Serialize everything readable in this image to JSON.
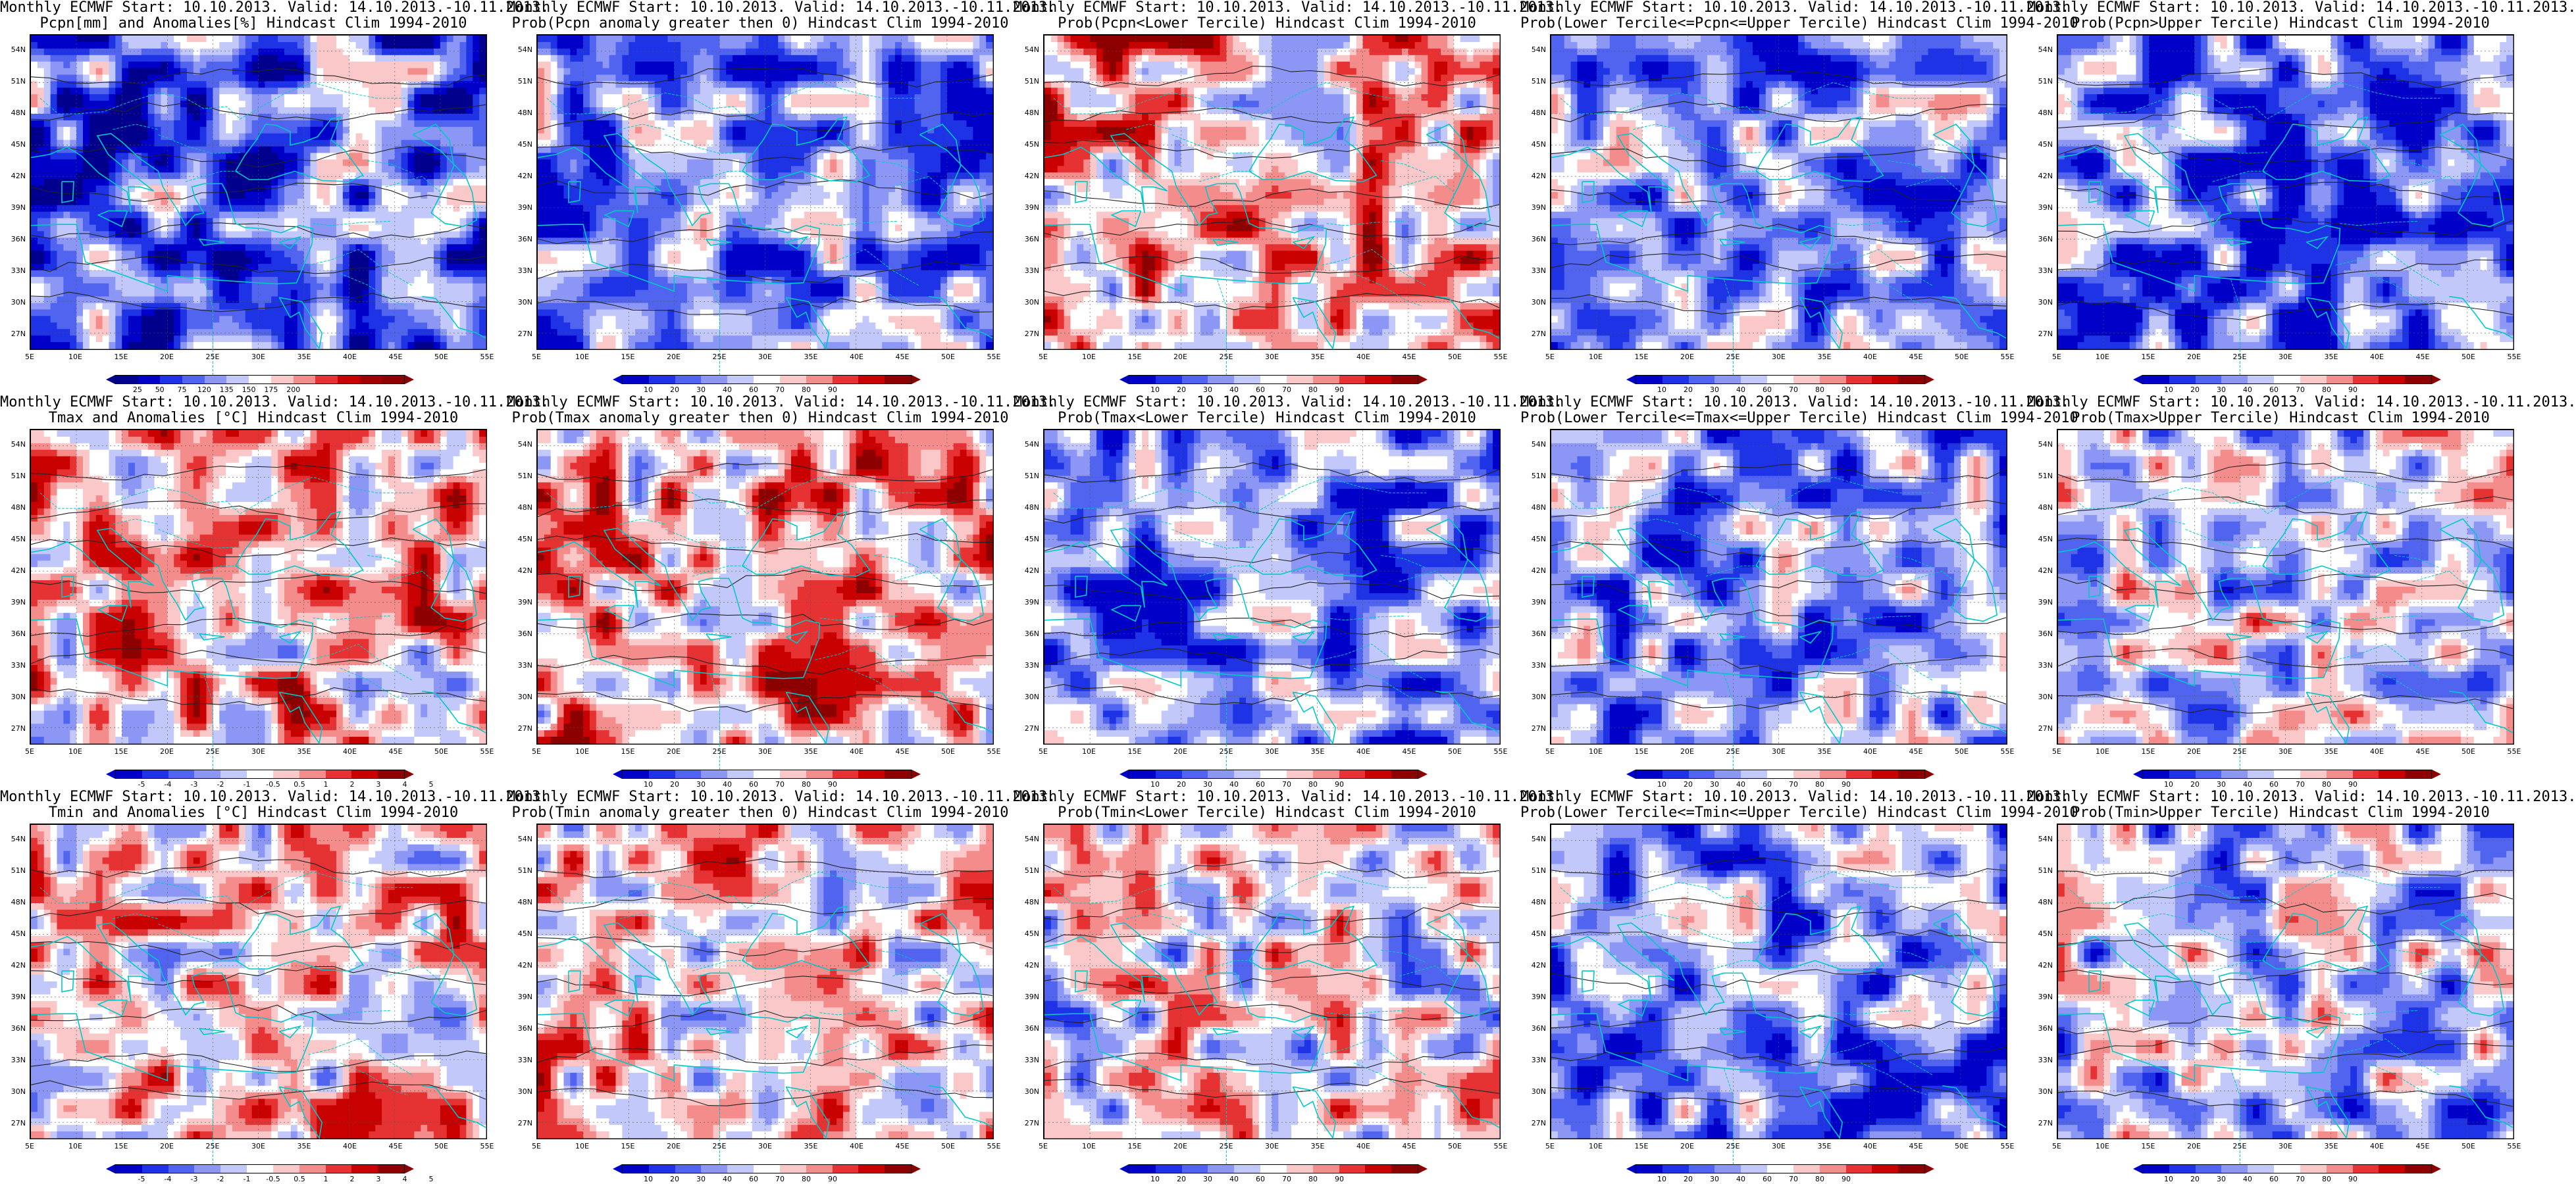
{
  "map_extent": {
    "lon_min": 5,
    "lon_max": 55,
    "lat_min": 25,
    "lat_max": 55,
    "lon_ticks": [
      "5E",
      "10E",
      "15E",
      "20E",
      "25E",
      "30E",
      "35E",
      "40E",
      "45E",
      "50E",
      "55E"
    ],
    "lat_ticks": [
      "54N",
      "51N",
      "48N",
      "45N",
      "42N",
      "39N",
      "36N",
      "33N",
      "30N",
      "27N"
    ]
  },
  "colors": {
    "coast": "#00c8c8",
    "contour": "#222222",
    "prob_ramp": [
      "#0000c8",
      "#1e32e6",
      "#5064f0",
      "#8c96f5",
      "#c3c8fa",
      "#ffffff",
      "#fac8c8",
      "#f58c8c",
      "#e63232",
      "#c80000",
      "#8c0000"
    ],
    "pcpn_ramp": [
      "#00008c",
      "#0000c8",
      "#1e32e6",
      "#5064f0",
      "#8c96f5",
      "#c3c8fa",
      "#ffffff",
      "#fac8c8",
      "#f58c8c",
      "#e63232",
      "#c80000",
      "#a00000",
      "#8c0000"
    ],
    "temp_ramp": [
      "#0000c8",
      "#1e32e6",
      "#5064f0",
      "#8c96f5",
      "#c3c8fa",
      "#ffffff",
      "#fac8c8",
      "#f58c8c",
      "#e63232",
      "#c80000",
      "#8c0000"
    ]
  },
  "legends": {
    "prob": [
      "10",
      "20",
      "30",
      "40",
      "60",
      "70",
      "80",
      "90"
    ],
    "pcpn": [
      "25",
      "50",
      "75",
      "120",
      "135",
      "150",
      "175",
      "200"
    ],
    "temp": [
      "-5",
      "-4",
      "-3",
      "-2",
      "-1",
      "-0.5",
      "0.5",
      "1",
      "2",
      "3",
      "4",
      "5"
    ],
    "temp_row2": [
      "-5",
      "-4",
      "-3",
      "-2",
      "-1",
      "-0.5",
      "0.5",
      "1",
      "2",
      "3",
      "4",
      "5"
    ]
  },
  "panels": [
    {
      "line1": "Monthly ECMWF Start: 10.10.2013. Valid: 14.10.2013.-10.11.2013.",
      "line2": "Pcpn[mm] and Anomalies[%] Hindcast Clim 1994-2010",
      "legend": "pcpn",
      "scheme": "pcpn",
      "level": 0.28
    },
    {
      "line1": "Monthly ECMWF Start: 10.10.2013. Valid: 14.10.2013.-10.11.2013.",
      "line2": "Prob(Pcpn anomaly greater then 0) Hindcast Clim 1994-2010",
      "legend": "prob",
      "scheme": "prob",
      "level": 0.3
    },
    {
      "line1": "Monthly ECMWF Start: 10.10.2013. Valid: 14.10.2013.-10.11.2013.",
      "line2": "Prob(Pcpn<Lower Tercile) Hindcast Clim 1994-2010",
      "legend": "prob",
      "scheme": "prob",
      "level": 0.62
    },
    {
      "line1": "Monthly ECMWF Start: 10.10.2013. Valid: 14.10.2013.-10.11.2013.",
      "line2": "Prob(Lower Tercile<=Pcpn<=Upper Tercile) Hindcast Clim 1994-2010",
      "legend": "prob",
      "scheme": "prob",
      "level": 0.32
    },
    {
      "line1": "Monthly ECMWF Start: 10.10.2013. Valid: 14.10.2013.-10.11.2013.",
      "line2": "Prob(Pcpn>Upper Tercile) Hindcast Clim 1994-2010",
      "legend": "prob",
      "scheme": "prob",
      "level": 0.25
    },
    {
      "line1": "Monthly ECMWF Start: 10.10.2013. Valid: 14.10.2013.-10.11.2013.",
      "line2": "Tmax and Anomalies [°C] Hindcast Clim 1994-2010",
      "legend": "temp",
      "scheme": "temp",
      "level": 0.6
    },
    {
      "line1": "Monthly ECMWF Start: 10.10.2013. Valid: 14.10.2013.-10.11.2013.",
      "line2": "Prob(Tmax anomaly greater then 0) Hindcast Clim 1994-2010",
      "legend": "prob",
      "scheme": "prob",
      "level": 0.62
    },
    {
      "line1": "Monthly ECMWF Start: 10.10.2013. Valid: 14.10.2013.-10.11.2013.",
      "line2": "Prob(Tmax<Lower Tercile) Hindcast Clim 1994-2010",
      "legend": "prob",
      "scheme": "prob",
      "level": 0.28
    },
    {
      "line1": "Monthly ECMWF Start: 10.10.2013. Valid: 14.10.2013.-10.11.2013.",
      "line2": "Prob(Lower Tercile<=Tmax<=Upper Tercile) Hindcast Clim 1994-2010",
      "legend": "prob",
      "scheme": "prob",
      "level": 0.32
    },
    {
      "line1": "Monthly ECMWF Start: 10.10.2013. Valid: 14.10.2013.-10.11.2013.",
      "line2": "Prob(Tmax>Upper Tercile) Hindcast Clim 1994-2010",
      "legend": "prob",
      "scheme": "prob",
      "level": 0.45
    },
    {
      "line1": "Monthly ECMWF Start: 10.10.2013. Valid: 14.10.2013.-10.11.2013.",
      "line2": "Tmin and Anomalies [°C] Hindcast Clim 1994-2010",
      "legend": "temp_row2",
      "scheme": "temp",
      "level": 0.55
    },
    {
      "line1": "Monthly ECMWF Start: 10.10.2013. Valid: 14.10.2013.-10.11.2013.",
      "line2": "Prob(Tmin anomaly greater then 0) Hindcast Clim 1994-2010",
      "legend": "prob",
      "scheme": "prob",
      "level": 0.55
    },
    {
      "line1": "Monthly ECMWF Start: 10.10.2013. Valid: 14.10.2013.-10.11.2013.",
      "line2": "Prob(Tmin<Lower Tercile) Hindcast Clim 1994-2010",
      "legend": "prob",
      "scheme": "prob",
      "level": 0.5
    },
    {
      "line1": "Monthly ECMWF Start: 10.10.2013. Valid: 14.10.2013.-10.11.2013.",
      "line2": "Prob(Lower Tercile<=Tmin<=Upper Tercile) Hindcast Clim 1994-2010",
      "legend": "prob",
      "scheme": "prob",
      "level": 0.3
    },
    {
      "line1": "Monthly ECMWF Start: 10.10.2013. Valid: 14.10.2013.-10.11.2013.",
      "line2": "Prob(Tmin>Upper Tercile) Hindcast Clim 1994-2010",
      "legend": "prob",
      "scheme": "prob",
      "level": 0.4
    }
  ]
}
